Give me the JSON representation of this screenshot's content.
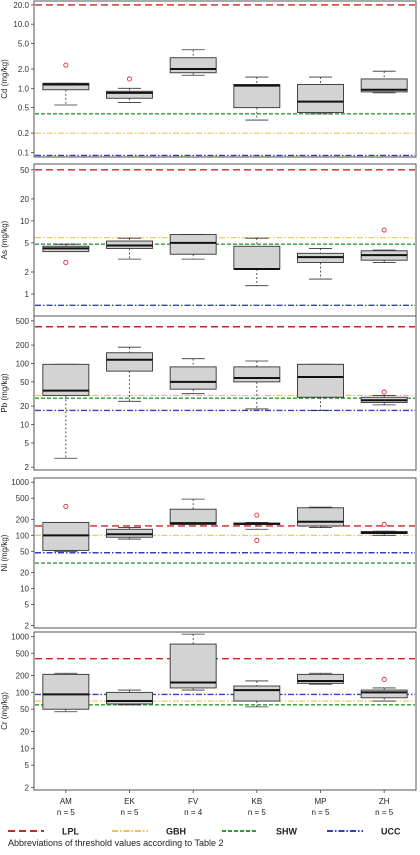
{
  "chart_data": {
    "type": "boxplot",
    "categories": [
      "AM",
      "EK",
      "FV",
      "KB",
      "MP",
      "ZH"
    ],
    "sample_sizes": [
      "n = 5",
      "n = 5",
      "n = 4",
      "n = 5",
      "n = 5",
      "n = 5"
    ],
    "scale": "log",
    "colors": {
      "box_fill": "#d3d3d3",
      "box_edge": "#333333",
      "outlier": "#e03030",
      "LPL": "#c62828",
      "GBH": "#f2c14e",
      "SHW": "#2e9b36",
      "UCC": "#3040c8"
    },
    "thresholds_legend": [
      {
        "key": "LPL",
        "label": "LPL",
        "style": "dashed"
      },
      {
        "key": "GBH",
        "label": "GBH",
        "style": "dash-dot"
      },
      {
        "key": "SHW",
        "label": "SHW",
        "style": "dashed"
      },
      {
        "key": "UCC",
        "label": "UCC",
        "style": "dash-dot"
      }
    ],
    "note": "Abbreviations of threshold values according to Table 2",
    "panels": [
      {
        "ylabel": "Cd (mg/kg)",
        "ylim": [
          0.085,
          23
        ],
        "ticks": [
          0.1,
          0.2,
          0.5,
          1.0,
          2.0,
          5.0,
          10.0,
          20.0
        ],
        "tick_labels": [
          "0.1",
          "0.2",
          "0.5",
          "1.0",
          "2.0",
          "5.0",
          "10.0",
          "20.0"
        ],
        "thresholds": {
          "LPL": 20,
          "GBH": 0.2,
          "SHW": 0.4,
          "UCC": 0.09
        },
        "boxes": [
          {
            "min": 0.55,
            "q1": 0.95,
            "median": 1.15,
            "q3": 1.2,
            "max": 1.2,
            "outliers": [
              2.3
            ]
          },
          {
            "min": 0.6,
            "q1": 0.7,
            "median": 0.85,
            "q3": 0.9,
            "max": 1.0,
            "outliers": [
              1.4
            ]
          },
          {
            "min": 1.6,
            "q1": 1.75,
            "median": 2.0,
            "q3": 3.0,
            "max": 4.0,
            "outliers": []
          },
          {
            "min": 0.32,
            "q1": 0.5,
            "median": 1.1,
            "q3": 1.15,
            "max": 1.5,
            "outliers": []
          },
          {
            "min": 0.4,
            "q1": 0.42,
            "median": 0.62,
            "q3": 1.15,
            "max": 1.5,
            "outliers": []
          },
          {
            "min": 0.85,
            "q1": 0.88,
            "median": 0.95,
            "q3": 1.4,
            "max": 1.85,
            "outliers": []
          }
        ]
      },
      {
        "ylabel": "As (mg/kg)",
        "ylim": [
          0.5,
          60
        ],
        "ticks": [
          1,
          2,
          5,
          10,
          20,
          50
        ],
        "tick_labels": [
          "1",
          "2",
          "5",
          "10",
          "20",
          "50"
        ],
        "thresholds": {
          "LPL": 50,
          "GBH": 5.9,
          "SHW": 4.8,
          "UCC": 0.7
        },
        "boxes": [
          {
            "min": 3.8,
            "q1": 3.8,
            "median": 4.2,
            "q3": 4.5,
            "max": 4.8,
            "outliers": [
              2.7
            ]
          },
          {
            "min": 3.0,
            "q1": 4.2,
            "median": 4.6,
            "q3": 5.3,
            "max": 5.8,
            "outliers": []
          },
          {
            "min": 3.0,
            "q1": 3.5,
            "median": 5.0,
            "q3": 6.5,
            "max": 6.5,
            "outliers": []
          },
          {
            "min": 1.3,
            "q1": 2.2,
            "median": 2.2,
            "q3": 4.5,
            "max": 5.8,
            "outliers": []
          },
          {
            "min": 1.6,
            "q1": 2.7,
            "median": 3.2,
            "q3": 3.6,
            "max": 4.2,
            "outliers": []
          },
          {
            "min": 2.7,
            "q1": 2.9,
            "median": 3.4,
            "q3": 3.9,
            "max": 4.0,
            "outliers": [
              7.5
            ]
          }
        ]
      },
      {
        "ylabel": "Pb (mg/kg)",
        "ylim": [
          1.8,
          600
        ],
        "ticks": [
          2,
          5,
          10,
          20,
          50,
          100,
          200,
          500
        ],
        "tick_labels": [
          "2",
          "5",
          "10",
          "20",
          "50",
          "100",
          "200",
          "500"
        ],
        "thresholds": {
          "LPL": 400,
          "GBH": 30,
          "SHW": 27,
          "UCC": 17
        },
        "boxes": [
          {
            "min": 2.8,
            "q1": 30,
            "median": 36,
            "q3": 97,
            "max": 97,
            "outliers": []
          },
          {
            "min": 24,
            "q1": 75,
            "median": 115,
            "q3": 150,
            "max": 185,
            "outliers": []
          },
          {
            "min": 32,
            "q1": 38,
            "median": 50,
            "q3": 88,
            "max": 120,
            "outliers": []
          },
          {
            "min": 18,
            "q1": 50,
            "median": 58,
            "q3": 88,
            "max": 110,
            "outliers": []
          },
          {
            "min": 17,
            "q1": 28,
            "median": 60,
            "q3": 97,
            "max": 97,
            "outliers": []
          },
          {
            "min": 21,
            "q1": 23,
            "median": 25,
            "q3": 28,
            "max": 30,
            "outliers": [
              34
            ]
          }
        ]
      },
      {
        "ylabel": "Ni (mg/kg)",
        "ylim": [
          1.8,
          1200
        ],
        "ticks": [
          2,
          5,
          10,
          20,
          50,
          100,
          200,
          500,
          1000
        ],
        "tick_labels": [
          "2",
          "5",
          "10",
          "20",
          "50",
          "100",
          "200",
          "500",
          "1000"
        ],
        "thresholds": {
          "LPL": 150,
          "GBH": 100,
          "SHW": 30,
          "UCC": 47
        },
        "boxes": [
          {
            "min": 50,
            "q1": 52,
            "median": 100,
            "q3": 175,
            "max": 175,
            "outliers": [
              350
            ]
          },
          {
            "min": 85,
            "q1": 92,
            "median": 105,
            "q3": 130,
            "max": 140,
            "outliers": []
          },
          {
            "min": 160,
            "q1": 160,
            "median": 170,
            "q3": 310,
            "max": 480,
            "outliers": []
          },
          {
            "min": 130,
            "q1": 160,
            "median": 165,
            "q3": 170,
            "max": 175,
            "outliers": [
              240,
              80
            ]
          },
          {
            "min": 140,
            "q1": 150,
            "median": 180,
            "q3": 330,
            "max": 340,
            "outliers": []
          },
          {
            "min": 100,
            "q1": 108,
            "median": 112,
            "q3": 118,
            "max": 120,
            "outliers": [
              160
            ]
          }
        ]
      },
      {
        "ylabel": "Cr (mg/kg)",
        "ylim": [
          1.8,
          1200
        ],
        "ticks": [
          2,
          5,
          10,
          20,
          50,
          100,
          200,
          500,
          1000
        ],
        "tick_labels": [
          "2",
          "5",
          "10",
          "20",
          "50",
          "100",
          "200",
          "500",
          "1000"
        ],
        "thresholds": {
          "LPL": 400,
          "GBH": 70,
          "SHW": 60,
          "UCC": 92
        },
        "boxes": [
          {
            "min": 45,
            "q1": 50,
            "median": 92,
            "q3": 210,
            "max": 220,
            "outliers": []
          },
          {
            "min": 60,
            "q1": 62,
            "median": 70,
            "q3": 100,
            "max": 110,
            "outliers": []
          },
          {
            "min": 110,
            "q1": 120,
            "median": 150,
            "q3": 730,
            "max": 1100,
            "outliers": []
          },
          {
            "min": 55,
            "q1": 70,
            "median": 110,
            "q3": 130,
            "max": 160,
            "outliers": []
          },
          {
            "min": 140,
            "q1": 145,
            "median": 160,
            "q3": 210,
            "max": 220,
            "outliers": []
          },
          {
            "min": 70,
            "q1": 80,
            "median": 100,
            "q3": 110,
            "max": 120,
            "outliers": [
              170
            ]
          }
        ]
      }
    ]
  }
}
